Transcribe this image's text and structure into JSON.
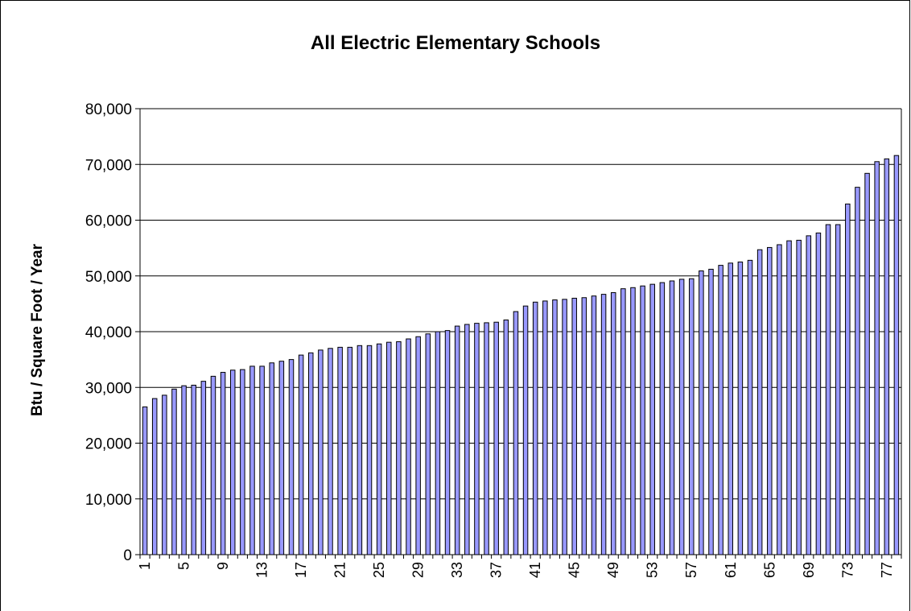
{
  "chart_data": {
    "type": "bar",
    "title": "All Electric Elementary Schools",
    "xlabel": "",
    "ylabel": "Btu / Square Foot / Year",
    "ylim": [
      0,
      80000
    ],
    "yticks": [
      "0",
      "10,000",
      "20,000",
      "30,000",
      "40,000",
      "50,000",
      "60,000",
      "70,000",
      "80,000"
    ],
    "categories": [
      1,
      2,
      3,
      4,
      5,
      6,
      7,
      8,
      9,
      10,
      11,
      12,
      13,
      14,
      15,
      16,
      17,
      18,
      19,
      20,
      21,
      22,
      23,
      24,
      25,
      26,
      27,
      28,
      29,
      30,
      31,
      32,
      33,
      34,
      35,
      36,
      37,
      38,
      39,
      40,
      41,
      42,
      43,
      44,
      45,
      46,
      47,
      48,
      49,
      50,
      51,
      52,
      53,
      54,
      55,
      56,
      57,
      58,
      59,
      60,
      61,
      62,
      63,
      64,
      65,
      66,
      67,
      68,
      69,
      70,
      71,
      72,
      73,
      74,
      75,
      76,
      77,
      78
    ],
    "xtick_labels": [
      "1",
      "5",
      "9",
      "13",
      "17",
      "21",
      "25",
      "29",
      "33",
      "37",
      "41",
      "45",
      "49",
      "53",
      "57",
      "61",
      "65",
      "69",
      "73",
      "77"
    ],
    "values": [
      26500,
      28000,
      28600,
      29700,
      30300,
      30400,
      31100,
      32000,
      32700,
      33100,
      33200,
      33800,
      33800,
      34400,
      34700,
      35000,
      35800,
      36200,
      36700,
      37000,
      37200,
      37200,
      37500,
      37500,
      37800,
      38100,
      38200,
      38700,
      39100,
      39600,
      40000,
      40200,
      41000,
      41300,
      41500,
      41600,
      41700,
      42100,
      43600,
      44600,
      45300,
      45500,
      45700,
      45800,
      46000,
      46100,
      46400,
      46700,
      47000,
      47700,
      47900,
      48200,
      48500,
      48800,
      49100,
      49400,
      49500,
      50900,
      51200,
      51900,
      52300,
      52500,
      52800,
      54700,
      55100,
      55600,
      56300,
      56400,
      57200,
      57700,
      59200,
      59200,
      62900,
      65900,
      68400,
      70500,
      71000,
      71600
    ],
    "grid": true,
    "legend": "none",
    "colors": {
      "bar_fill": "#9999ff",
      "bar_stroke": "#000000",
      "grid": "#000000"
    }
  }
}
